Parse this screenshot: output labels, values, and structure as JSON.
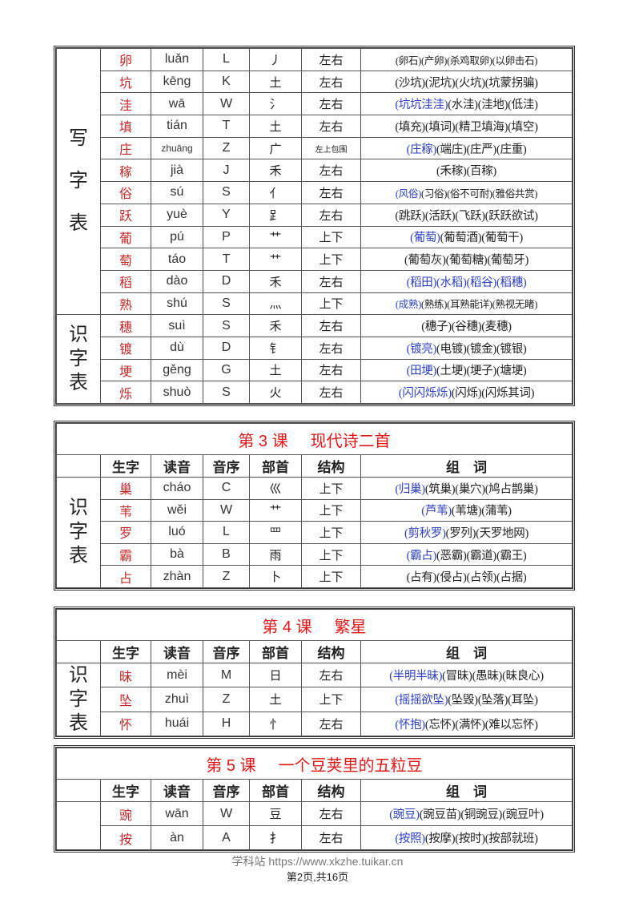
{
  "headers": [
    "生字",
    "读音",
    "音序",
    "部首",
    "结构",
    "组　词"
  ],
  "colors": {
    "char": "#c0282a",
    "highlight": "#2b3fbf",
    "title": "#e01818"
  },
  "tables": [
    {
      "title": null,
      "groups": [
        {
          "label": "写字表",
          "rows": [
            [
              "卵",
              "luǎn",
              "L",
              "丿",
              "左右",
              [
                "(卵石)",
                "(产卵)",
                "(杀鸡取卵)",
                "(以卵击石)"
              ],
              0
            ],
            [
              "坑",
              "kēng",
              "K",
              "土",
              "左右",
              [
                "(沙坑)",
                "(泥坑)",
                "(火坑)",
                "(坑蒙拐骗)"
              ],
              0
            ],
            [
              "洼",
              "wā",
              "W",
              "氵",
              "左右",
              [
                "(坑坑洼洼)",
                "(水洼)",
                "(洼地)",
                "(低洼)"
              ],
              1
            ],
            [
              "填",
              "tián",
              "T",
              "土",
              "左右",
              [
                "(填充)",
                "(填词)",
                "(精卫填海)",
                "(填空)"
              ],
              0
            ],
            [
              "庄",
              "zhuāng",
              "Z",
              "广",
              "左上包围",
              [
                "(庄稼)",
                "(端庄)",
                "(庄严)",
                "(庄重)"
              ],
              1
            ],
            [
              "稼",
              "jià",
              "J",
              "禾",
              "左右",
              [
                "(禾稼)",
                "(百稼)"
              ],
              0
            ],
            [
              "俗",
              "sú",
              "S",
              "亻",
              "左右",
              [
                "(风俗)",
                "(习俗)",
                "(俗不可耐)",
                "(雅俗共赏)"
              ],
              1
            ],
            [
              "跃",
              "yuè",
              "Y",
              "⻊",
              "左右",
              [
                "(跳跃)",
                "(活跃)",
                "(飞跃)",
                "(跃跃欲试)"
              ],
              0
            ],
            [
              "葡",
              "pú",
              "P",
              "艹",
              "上下",
              [
                "(葡萄)",
                "(葡萄酒)",
                "(葡萄干)"
              ],
              1
            ],
            [
              "萄",
              "táo",
              "T",
              "艹",
              "上下",
              [
                "(葡萄灰)",
                "(葡萄糖)",
                "(葡萄牙)"
              ],
              0
            ],
            [
              "稻",
              "dào",
              "D",
              "禾",
              "左右",
              [
                "(稻田)",
                "(水稻)",
                "(稻谷)",
                "(稻穗)"
              ],
              4
            ],
            [
              "熟",
              "shú",
              "S",
              "灬",
              "上下",
              [
                "(成熟)",
                "(熟练)",
                "(耳熟能详)",
                "(熟视无睹)"
              ],
              1
            ]
          ]
        },
        {
          "label": "识字表",
          "rows": [
            [
              "穗",
              "suì",
              "S",
              "禾",
              "左右",
              [
                "(穗子)",
                "(谷穗)",
                "(麦穗)"
              ],
              0
            ],
            [
              "镀",
              "dù",
              "D",
              "钅",
              "左右",
              [
                "(镀亮)",
                "(电镀)",
                "(镀金)",
                "(镀银)"
              ],
              1
            ],
            [
              "埂",
              "gěng",
              "G",
              "土",
              "左右",
              [
                "(田埂)",
                "(土埂)",
                "(埂子)",
                "(塘埂)"
              ],
              1
            ],
            [
              "烁",
              "shuò",
              "S",
              "火",
              "左右",
              [
                "(闪闪烁烁)",
                "(闪烁)",
                "(闪烁其词)"
              ],
              1
            ]
          ]
        }
      ]
    },
    {
      "title": {
        "lesson": "第 3 课",
        "name": "现代诗二首"
      },
      "groups": [
        {
          "label": "识字表",
          "rows": [
            [
              "巢",
              "cháo",
              "C",
              "巛",
              "上下",
              [
                "(归巢)",
                "(筑巢)",
                "(巢穴)",
                "(鸠占鹊巢)"
              ],
              1
            ],
            [
              "苇",
              "wěi",
              "W",
              "艹",
              "上下",
              [
                "(芦苇)",
                "(苇塘)",
                "(蒲苇)"
              ],
              1
            ],
            [
              "罗",
              "luó",
              "L",
              "罒",
              "上下",
              [
                "(剪秋罗)",
                "(罗列)",
                "(天罗地网)"
              ],
              1
            ],
            [
              "霸",
              "bà",
              "B",
              "雨",
              "上下",
              [
                "(霸占)",
                "(恶霸)",
                "(霸道)",
                "(霸王)"
              ],
              1
            ],
            [
              "占",
              "zhàn",
              "Z",
              "卜",
              "上下",
              [
                "(占有)",
                "(侵占)",
                "(占领)",
                "(占据)"
              ],
              0
            ]
          ]
        }
      ]
    },
    {
      "title": {
        "lesson": "第 4 课",
        "name": "繁星"
      },
      "groups": [
        {
          "label": "识字表",
          "rows": [
            [
              "昧",
              "mèi",
              "M",
              "日",
              "左右",
              [
                "(半明半昧)",
                "(冒昧)",
                "(愚昧)",
                "(昧良心)"
              ],
              1
            ],
            [
              "坠",
              "zhuì",
              "Z",
              "土",
              "上下",
              [
                "(摇摇欲坠)",
                "(坠毁)",
                "(坠落)",
                "(耳坠)"
              ],
              1
            ],
            [
              "怀",
              "huái",
              "H",
              "忄",
              "左右",
              [
                "(怀抱)",
                "(忘怀)",
                "(满怀)",
                "(难以忘怀)"
              ],
              1
            ]
          ]
        }
      ]
    },
    {
      "title": {
        "lesson": "第 5 课",
        "name": "一个豆荚里的五粒豆"
      },
      "groups": [
        {
          "label": "",
          "rows": [
            [
              "豌",
              "wān",
              "W",
              "豆",
              "左右",
              [
                "(豌豆)",
                "(豌豆苗)",
                "(铜豌豆)",
                "(豌豆叶)"
              ],
              1
            ],
            [
              "按",
              "àn",
              "A",
              "扌",
              "左右",
              [
                "(按照)",
                "(按摩)",
                "(按时)",
                "(按部就班)"
              ],
              1
            ]
          ]
        }
      ]
    }
  ],
  "footer": {
    "site": "学科站 https://www.xkzhe.tuikar.cn",
    "page": "第2页,共16页"
  }
}
